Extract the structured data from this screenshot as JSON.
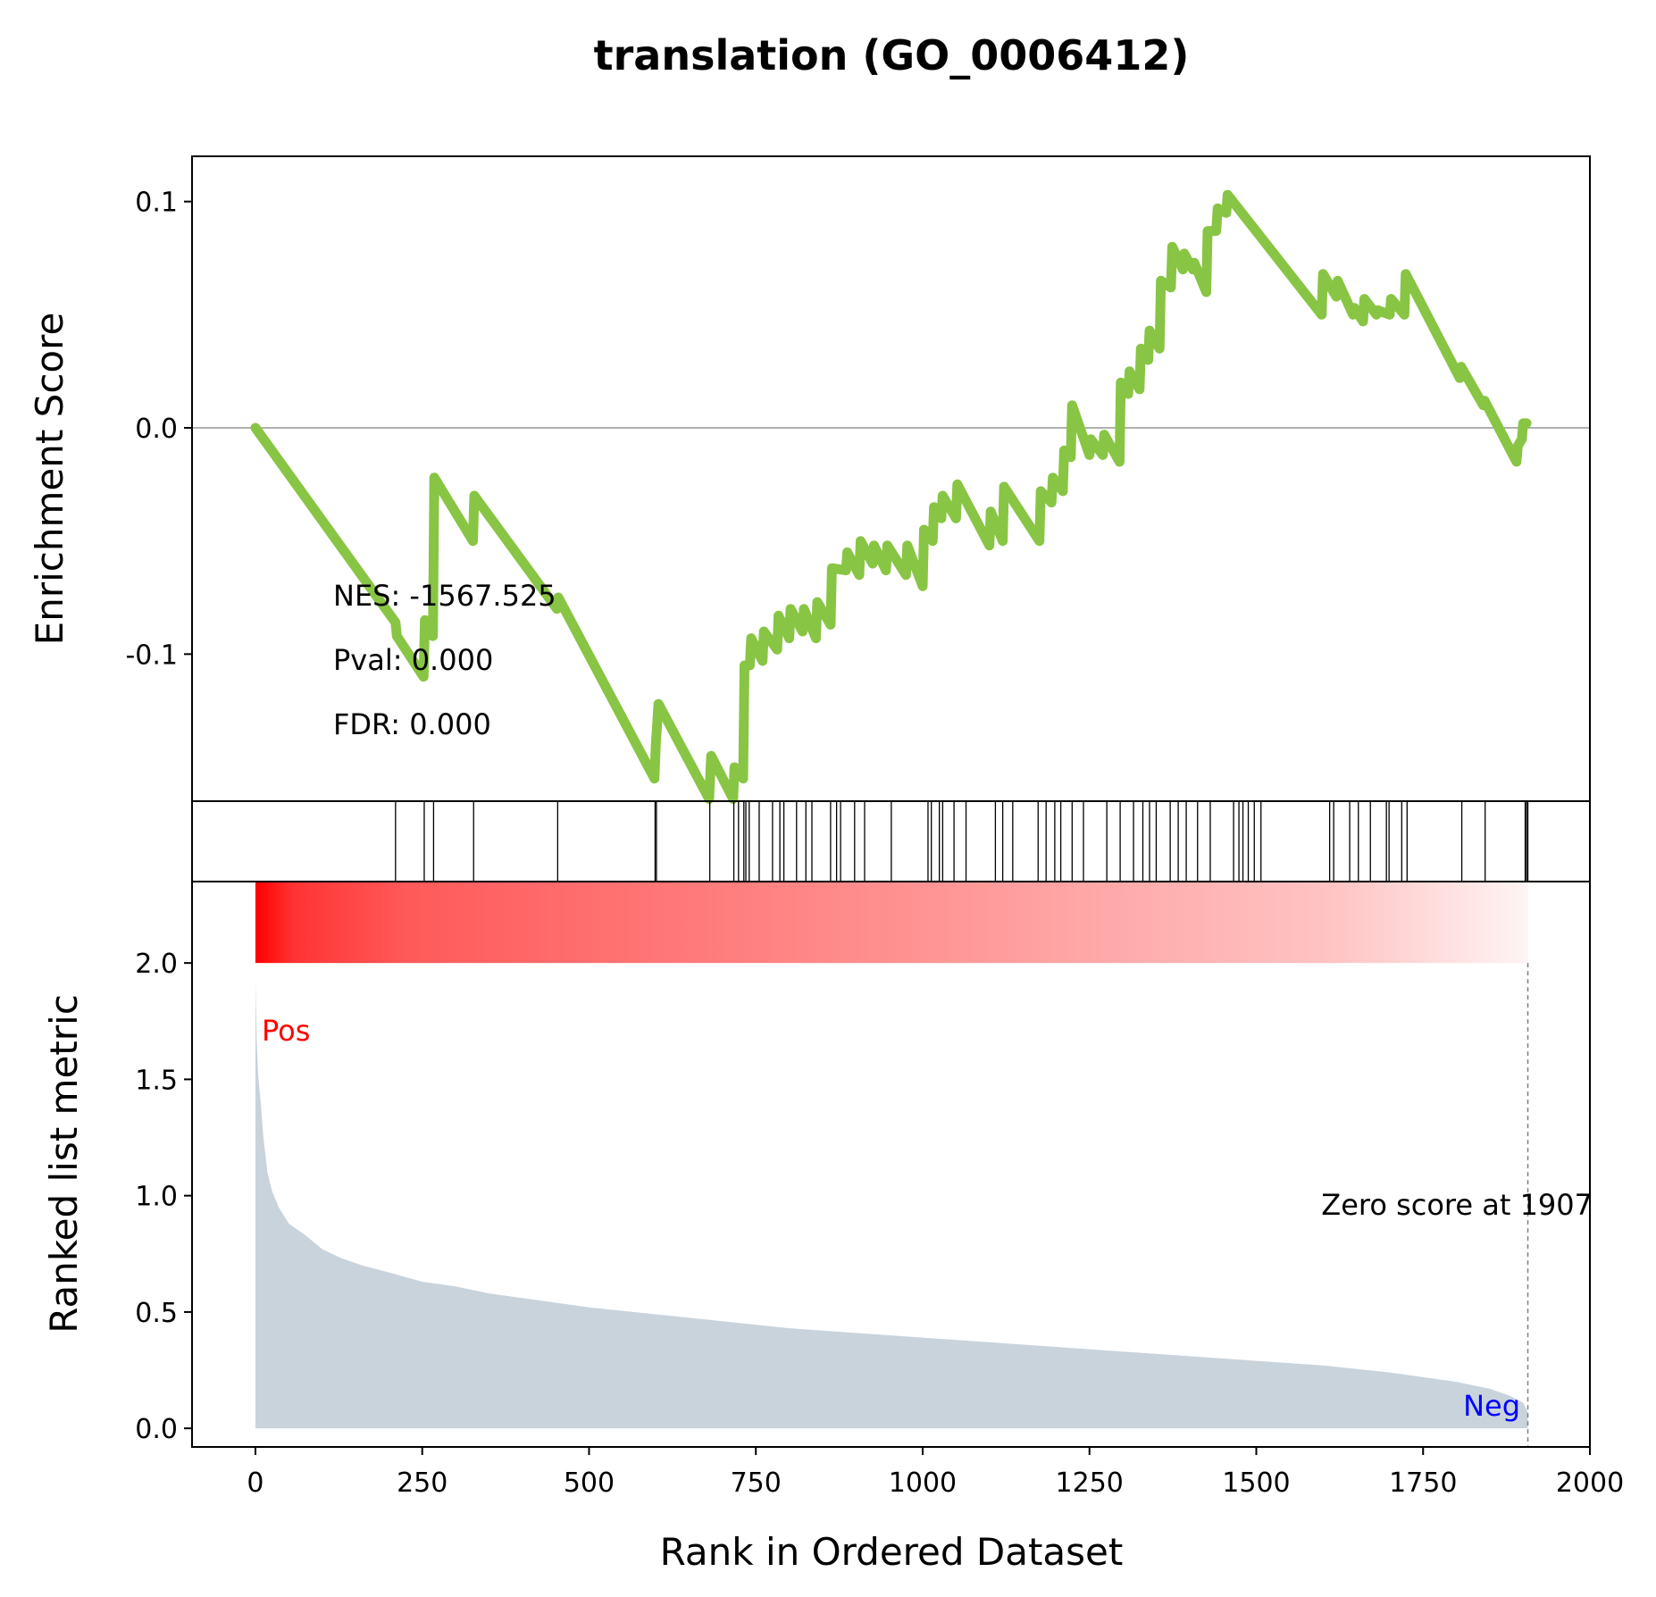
{
  "chart_data": {
    "type": "line",
    "title": "translation (GO_0006412)",
    "xlabel": "Rank in Ordered Dataset",
    "xlim": [
      -95,
      2000
    ],
    "xticks": [
      0,
      250,
      500,
      750,
      1000,
      1250,
      1500,
      1750,
      2000
    ],
    "xtick_labels": [
      "0",
      "250",
      "500",
      "750",
      "1000",
      "1250",
      "1500",
      "1750",
      "2000"
    ],
    "enrichment": {
      "ylabel": "Enrichment Score",
      "ylim": [
        -0.165,
        0.12
      ],
      "yticks": [
        0.1,
        0.0,
        -0.1
      ],
      "ytick_labels": [
        "0.1",
        "0.0",
        "-0.1"
      ],
      "line_color": "#88c544",
      "stats": [
        "NES: -1567.525",
        "Pval: 0.000",
        "FDR: 0.000"
      ],
      "points": [
        [
          0,
          0.0
        ],
        [
          210,
          -0.086
        ],
        [
          212,
          -0.092
        ],
        [
          252,
          -0.11
        ],
        [
          254,
          -0.085
        ],
        [
          266,
          -0.092
        ],
        [
          268,
          -0.022
        ],
        [
          326,
          -0.05
        ],
        [
          328,
          -0.03
        ],
        [
          452,
          -0.08
        ],
        [
          454,
          -0.075
        ],
        [
          598,
          -0.155
        ],
        [
          600,
          -0.14
        ],
        [
          604,
          -0.122
        ],
        [
          680,
          -0.164
        ],
        [
          683,
          -0.145
        ],
        [
          716,
          -0.164
        ],
        [
          718,
          -0.15
        ],
        [
          731,
          -0.155
        ],
        [
          733,
          -0.105
        ],
        [
          741,
          -0.105
        ],
        [
          743,
          -0.093
        ],
        [
          760,
          -0.103
        ],
        [
          762,
          -0.09
        ],
        [
          782,
          -0.098
        ],
        [
          784,
          -0.083
        ],
        [
          800,
          -0.093
        ],
        [
          802,
          -0.08
        ],
        [
          820,
          -0.09
        ],
        [
          822,
          -0.08
        ],
        [
          840,
          -0.093
        ],
        [
          842,
          -0.077
        ],
        [
          862,
          -0.087
        ],
        [
          864,
          -0.062
        ],
        [
          885,
          -0.063
        ],
        [
          887,
          -0.055
        ],
        [
          905,
          -0.065
        ],
        [
          907,
          -0.05
        ],
        [
          925,
          -0.06
        ],
        [
          927,
          -0.052
        ],
        [
          945,
          -0.063
        ],
        [
          947,
          -0.052
        ],
        [
          975,
          -0.065
        ],
        [
          977,
          -0.052
        ],
        [
          1000,
          -0.07
        ],
        [
          1002,
          -0.045
        ],
        [
          1015,
          -0.05
        ],
        [
          1017,
          -0.035
        ],
        [
          1028,
          -0.04
        ],
        [
          1030,
          -0.03
        ],
        [
          1050,
          -0.04
        ],
        [
          1052,
          -0.025
        ],
        [
          1100,
          -0.052
        ],
        [
          1102,
          -0.037
        ],
        [
          1120,
          -0.05
        ],
        [
          1122,
          -0.026
        ],
        [
          1175,
          -0.05
        ],
        [
          1177,
          -0.028
        ],
        [
          1193,
          -0.033
        ],
        [
          1195,
          -0.022
        ],
        [
          1210,
          -0.028
        ],
        [
          1212,
          -0.01
        ],
        [
          1222,
          -0.013
        ],
        [
          1224,
          0.01
        ],
        [
          1250,
          -0.012
        ],
        [
          1252,
          -0.005
        ],
        [
          1270,
          -0.012
        ],
        [
          1272,
          -0.003
        ],
        [
          1295,
          -0.015
        ],
        [
          1297,
          0.02
        ],
        [
          1308,
          0.015
        ],
        [
          1310,
          0.025
        ],
        [
          1325,
          0.017
        ],
        [
          1327,
          0.035
        ],
        [
          1338,
          0.03
        ],
        [
          1340,
          0.043
        ],
        [
          1355,
          0.035
        ],
        [
          1357,
          0.065
        ],
        [
          1372,
          0.062
        ],
        [
          1374,
          0.08
        ],
        [
          1390,
          0.07
        ],
        [
          1392,
          0.077
        ],
        [
          1405,
          0.07
        ],
        [
          1407,
          0.073
        ],
        [
          1425,
          0.06
        ],
        [
          1427,
          0.087
        ],
        [
          1440,
          0.087
        ],
        [
          1442,
          0.097
        ],
        [
          1455,
          0.095
        ],
        [
          1457,
          0.103
        ],
        [
          1598,
          0.05
        ],
        [
          1600,
          0.068
        ],
        [
          1620,
          0.058
        ],
        [
          1622,
          0.065
        ],
        [
          1645,
          0.05
        ],
        [
          1647,
          0.053
        ],
        [
          1660,
          0.047
        ],
        [
          1662,
          0.057
        ],
        [
          1680,
          0.05
        ],
        [
          1682,
          0.052
        ],
        [
          1700,
          0.05
        ],
        [
          1702,
          0.057
        ],
        [
          1722,
          0.05
        ],
        [
          1724,
          0.068
        ],
        [
          1805,
          0.022
        ],
        [
          1807,
          0.027
        ],
        [
          1840,
          0.01
        ],
        [
          1842,
          0.012
        ],
        [
          1890,
          -0.015
        ],
        [
          1892,
          -0.008
        ],
        [
          1898,
          -0.005
        ],
        [
          1900,
          0.002
        ],
        [
          1905,
          0.002
        ]
      ]
    },
    "hits": [
      210,
      253,
      267,
      327,
      453,
      599,
      601,
      681,
      717,
      724,
      732,
      735,
      740,
      755,
      775,
      786,
      792,
      811,
      825,
      834,
      862,
      871,
      877,
      898,
      913,
      953,
      1008,
      1013,
      1025,
      1030,
      1047,
      1065,
      1109,
      1120,
      1135,
      1173,
      1185,
      1198,
      1207,
      1224,
      1241,
      1276,
      1296,
      1316,
      1330,
      1340,
      1350,
      1371,
      1383,
      1395,
      1412,
      1431,
      1466,
      1474,
      1480,
      1488,
      1497,
      1507,
      1610,
      1616,
      1640,
      1653,
      1671,
      1695,
      1699,
      1718,
      1726,
      1808,
      1843,
      1903,
      1905,
      1907
    ],
    "ranked_metric": {
      "ylabel": "Ranked list metric",
      "ylim": [
        -0.08,
        2.35
      ],
      "yticks": [
        2.0,
        1.5,
        1.0,
        0.5,
        0.0
      ],
      "ytick_labels": [
        "2.0",
        "1.5",
        "1.0",
        "0.5",
        "0.0"
      ],
      "fill_color": "#c9d3dc",
      "zero_score_text": "Zero score at 1907",
      "zero_rank": 1907,
      "pos_label": "Pos",
      "neg_label": "Neg",
      "pos_color": "#ff0000",
      "neg_color": "#0000ff",
      "points": [
        [
          0,
          1.92
        ],
        [
          2,
          1.65
        ],
        [
          4,
          1.52
        ],
        [
          8,
          1.4
        ],
        [
          12,
          1.25
        ],
        [
          18,
          1.1
        ],
        [
          25,
          1.02
        ],
        [
          35,
          0.95
        ],
        [
          50,
          0.88
        ],
        [
          75,
          0.83
        ],
        [
          100,
          0.77
        ],
        [
          130,
          0.73
        ],
        [
          160,
          0.7
        ],
        [
          200,
          0.67
        ],
        [
          250,
          0.63
        ],
        [
          300,
          0.61
        ],
        [
          350,
          0.58
        ],
        [
          400,
          0.56
        ],
        [
          450,
          0.54
        ],
        [
          500,
          0.52
        ],
        [
          600,
          0.49
        ],
        [
          700,
          0.46
        ],
        [
          800,
          0.43
        ],
        [
          900,
          0.41
        ],
        [
          1000,
          0.39
        ],
        [
          1100,
          0.37
        ],
        [
          1200,
          0.35
        ],
        [
          1300,
          0.33
        ],
        [
          1400,
          0.31
        ],
        [
          1500,
          0.29
        ],
        [
          1600,
          0.27
        ],
        [
          1700,
          0.24
        ],
        [
          1750,
          0.22
        ],
        [
          1800,
          0.2
        ],
        [
          1850,
          0.17
        ],
        [
          1880,
          0.14
        ],
        [
          1900,
          0.11
        ],
        [
          1907,
          0.07
        ]
      ]
    }
  }
}
